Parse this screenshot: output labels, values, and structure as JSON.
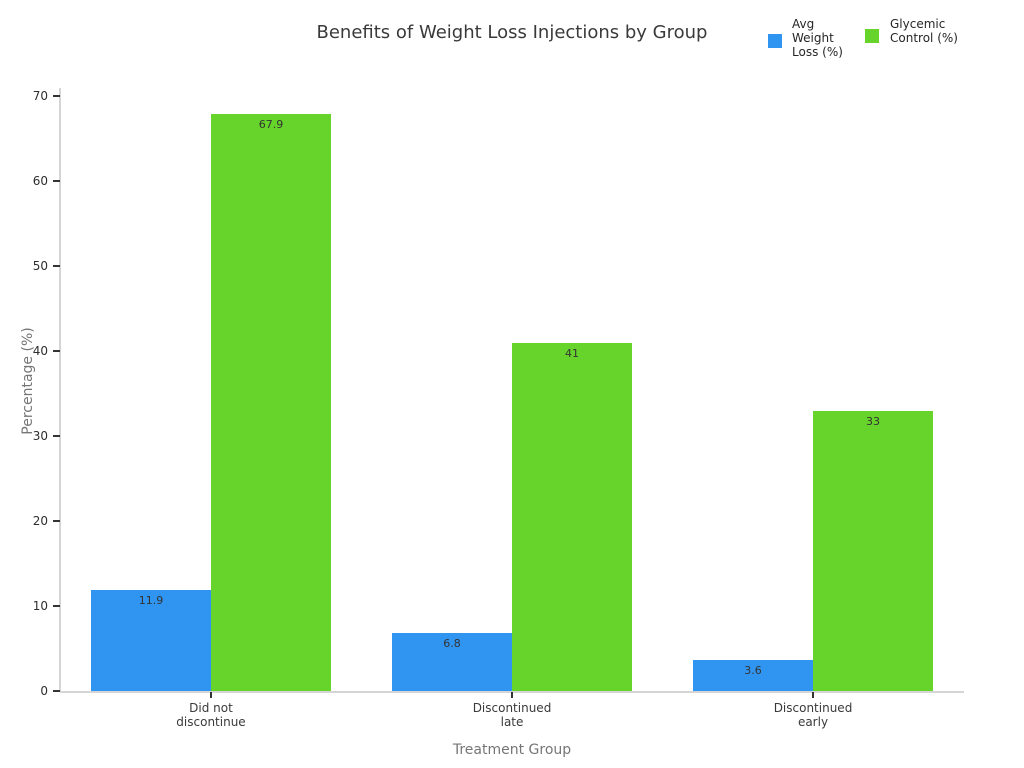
{
  "chart_data": {
    "type": "bar",
    "title": "Benefits of Weight Loss Injections by Group",
    "xlabel": "Treatment Group",
    "ylabel": "Percentage (%)",
    "categories": [
      "Did not\ndiscontinue",
      "Discontinued\nlate",
      "Discontinued\nearly"
    ],
    "series": [
      {
        "name": "Avg Weight Loss (%)",
        "color": "#3095f0",
        "values": [
          11.9,
          6.8,
          3.6
        ]
      },
      {
        "name": "Glycemic Control (%)",
        "color": "#66d42a",
        "values": [
          67.9,
          41,
          33
        ]
      }
    ],
    "value_labels": [
      [
        "11.9",
        "6.8",
        "3.6"
      ],
      [
        "67.9",
        "41",
        "33"
      ]
    ],
    "yticks": [
      0,
      10,
      20,
      30,
      40,
      50,
      60,
      70
    ],
    "ylim": [
      0,
      70
    ],
    "grid": false,
    "legend_position": "top-right",
    "colors": {
      "avg_weight_loss": "#3095f0",
      "glycemic_control": "#66d42a",
      "axis_line": "#d5d5d5",
      "tick_mark": "#333333",
      "title_text": "#3a3a3a",
      "axis_label_text": "#767676"
    }
  }
}
